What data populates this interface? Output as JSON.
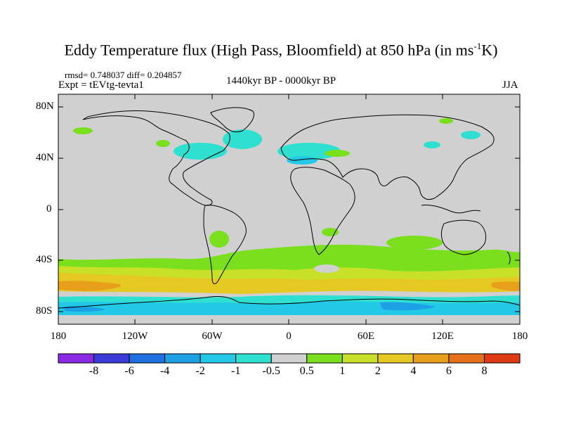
{
  "title": {
    "main": "Eddy Temperature flux (High Pass, Bloomfield) at 850 hPa (in ms",
    "sup": "-1",
    "tail": "K)"
  },
  "stats": "rmsd= 0.748037 diff= 0.204857",
  "expt": "Expt = tEVtg-tevta1",
  "period": "1440kyr BP - 0000kyr BP",
  "season": "JJA",
  "y_axis_labels": [
    "80N",
    "40N",
    "0",
    "40S",
    "80S"
  ],
  "x_axis_labels": [
    "180",
    "120W",
    "60W",
    "0",
    "60E",
    "120E",
    "180"
  ],
  "colorbar": {
    "labels": [
      "-8",
      "-6",
      "-4",
      "-2",
      "-1",
      "-0.5",
      "0.5",
      "1",
      "2",
      "4",
      "6",
      "8"
    ],
    "colors": [
      "#8a2be2",
      "#3a3ad8",
      "#1e6fe0",
      "#1ca0e6",
      "#22c8e6",
      "#2fe0d0",
      "#d0d0d0",
      "#7ae01e",
      "#c8e028",
      "#e6c823",
      "#e8a01a",
      "#e6701a",
      "#e03a14"
    ]
  },
  "map": {
    "background": "#d0d0d0",
    "coastline_color": "#000000"
  }
}
